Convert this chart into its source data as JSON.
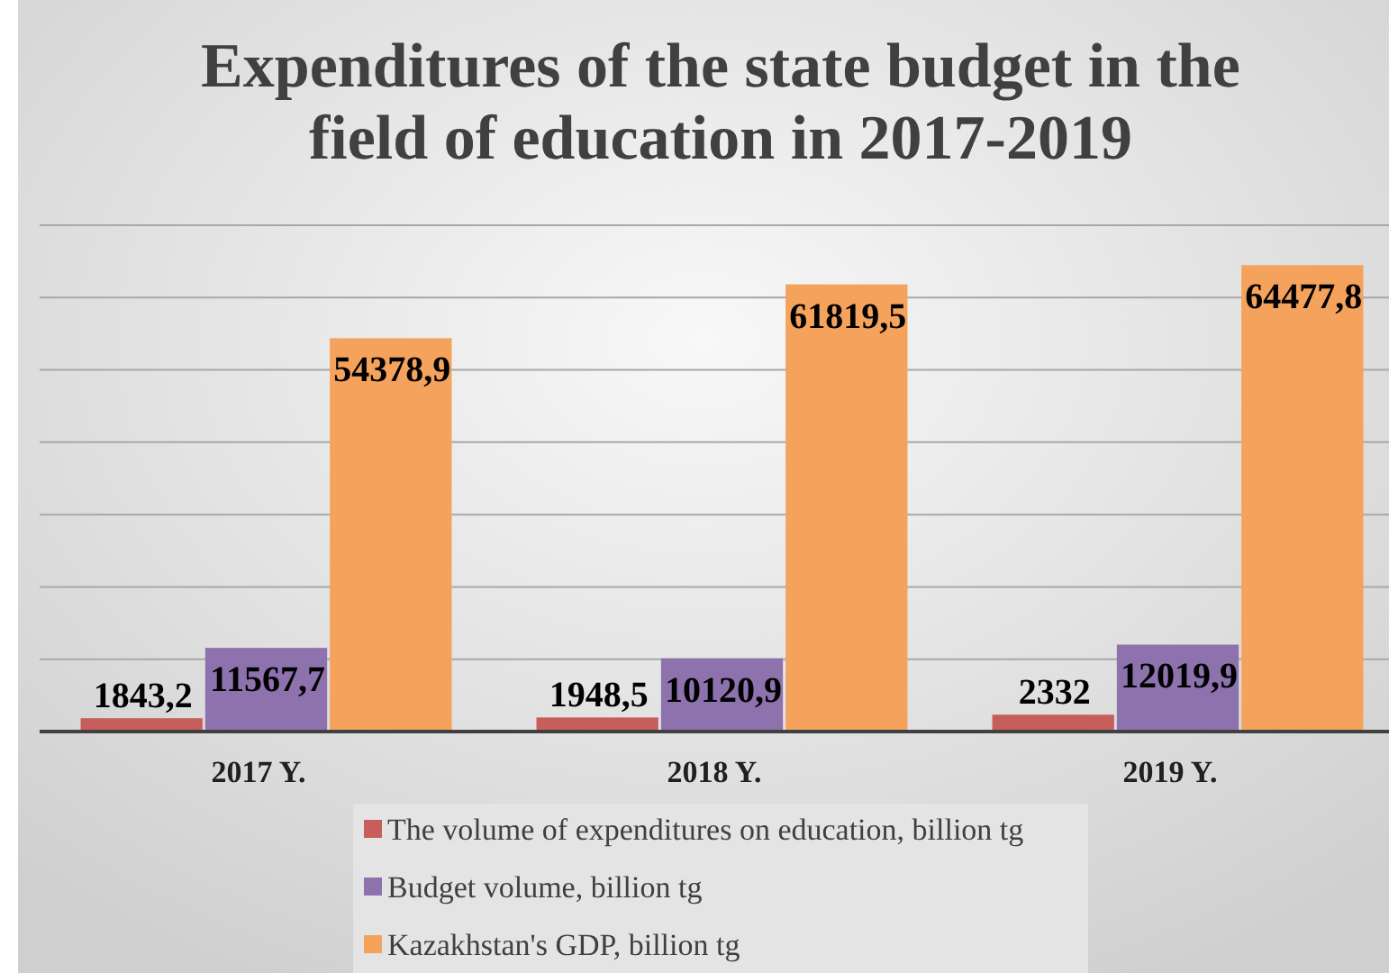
{
  "chart_data": {
    "type": "bar",
    "title": "Expenditures of the state budget in the field of education in 2017-2019",
    "categories": [
      "2017 Y.",
      "2018 Y.",
      "2019 Y."
    ],
    "series": [
      {
        "name": "The volume of expenditures on education, billion tg",
        "color": "#c65e5b",
        "values": [
          1843.2,
          1948.5,
          2332
        ],
        "value_labels": [
          "1843,2",
          "1948,5",
          "2332"
        ]
      },
      {
        "name": "Budget volume, billion tg",
        "color": "#8d72ae",
        "values": [
          11567.7,
          10120.9,
          12019.9
        ],
        "value_labels": [
          "11567,7",
          "10120,9",
          "12019,9"
        ]
      },
      {
        "name": "Kazakhstan's GDP, billion tg",
        "color": "#f4a25c",
        "values": [
          54378.9,
          61819.5,
          64477.8
        ],
        "value_labels": [
          "54378,9",
          "61819,5",
          "64477,8"
        ]
      }
    ],
    "ylim": [
      0,
      70000
    ],
    "yticks": [
      {
        "value": 0,
        "label": null
      },
      {
        "value": 10000,
        "label": null
      },
      {
        "value": 20000,
        "label": null
      },
      {
        "value": 30000,
        "label": null
      },
      {
        "value": 40000,
        "label": null
      },
      {
        "value": 50000,
        "label": null
      },
      {
        "value": 60000,
        "label": null
      },
      {
        "value": 70000,
        "label": null
      }
    ],
    "tick_labels": "x",
    "grid": "y",
    "legend": "bottom"
  }
}
